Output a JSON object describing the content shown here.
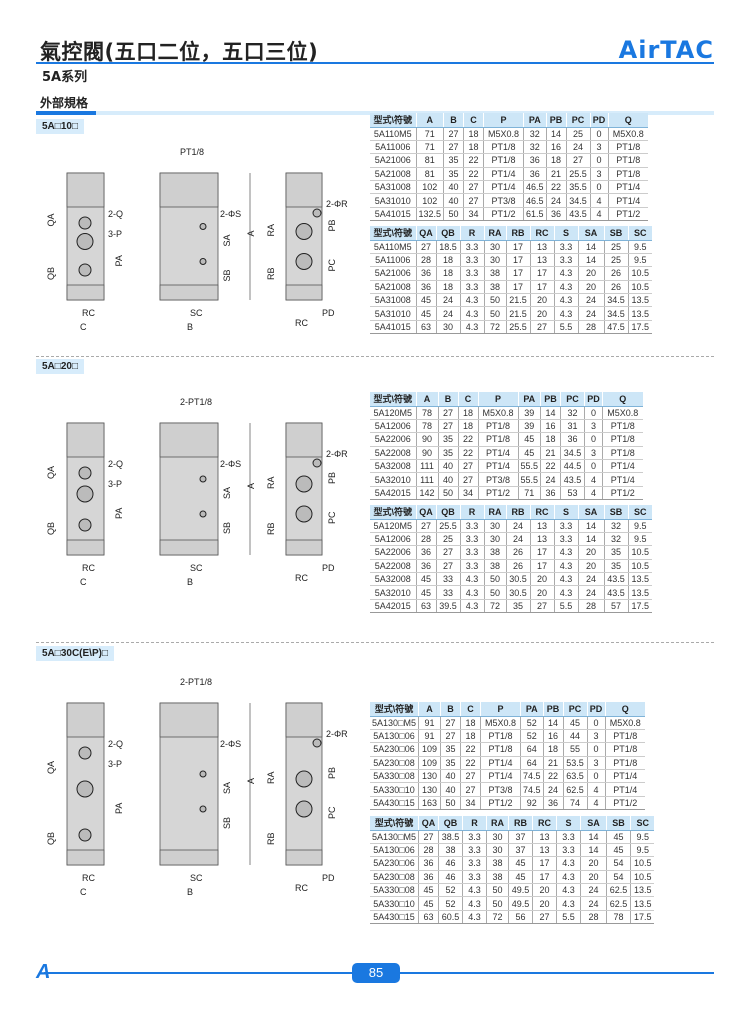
{
  "header": {
    "title": "氣控閥(五口二位，五口三位)",
    "logo": "AirTAC",
    "series": "5A系列",
    "spec_heading": "外部規格"
  },
  "footer": {
    "logo": "A",
    "page_number": "85"
  },
  "brand_color": "#1a78e0",
  "sections": [
    {
      "label": "5A□10□",
      "drawing_labels": {
        "port_top": "PT1/8",
        "q": "2-Q",
        "p": "3-P",
        "s": "2-ΦS",
        "r": "2-ΦR",
        "qa": "QA",
        "qb": "QB",
        "pa": "PA",
        "rc": "RC",
        "c": "C",
        "sa": "SA",
        "sb": "SB",
        "a": "A",
        "sc": "SC",
        "b": "B",
        "ra": "RA",
        "rb": "RB",
        "pb": "PB",
        "pc": "PC",
        "pd": "PD",
        "rc2": "RC"
      },
      "table1": {
        "headers": [
          "型式\\符號",
          "A",
          "B",
          "C",
          "P",
          "PA",
          "PB",
          "PC",
          "PD",
          "Q"
        ],
        "rows": [
          [
            "5A110M5",
            "71",
            "27",
            "18",
            "M5X0.8",
            "32",
            "14",
            "25",
            "0",
            "M5X0.8"
          ],
          [
            "5A11006",
            "71",
            "27",
            "18",
            "PT1/8",
            "32",
            "16",
            "24",
            "3",
            "PT1/8"
          ],
          [
            "5A21006",
            "81",
            "35",
            "22",
            "PT1/8",
            "36",
            "18",
            "27",
            "0",
            "PT1/8"
          ],
          [
            "5A21008",
            "81",
            "35",
            "22",
            "PT1/4",
            "36",
            "21",
            "25.5",
            "3",
            "PT1/8"
          ],
          [
            "5A31008",
            "102",
            "40",
            "27",
            "PT1/4",
            "46.5",
            "22",
            "35.5",
            "0",
            "PT1/4"
          ],
          [
            "5A31010",
            "102",
            "40",
            "27",
            "PT3/8",
            "46.5",
            "24",
            "34.5",
            "4",
            "PT1/4"
          ],
          [
            "5A41015",
            "132.5",
            "50",
            "34",
            "PT1/2",
            "61.5",
            "36",
            "43.5",
            "4",
            "PT1/2"
          ]
        ]
      },
      "table2": {
        "headers": [
          "型式\\符號",
          "QA",
          "QB",
          "R",
          "RA",
          "RB",
          "RC",
          "S",
          "SA",
          "SB",
          "SC"
        ],
        "rows": [
          [
            "5A110M5",
            "27",
            "18.5",
            "3.3",
            "30",
            "17",
            "13",
            "3.3",
            "14",
            "25",
            "9.5"
          ],
          [
            "5A11006",
            "28",
            "18",
            "3.3",
            "30",
            "17",
            "13",
            "3.3",
            "14",
            "25",
            "9.5"
          ],
          [
            "5A21006",
            "36",
            "18",
            "3.3",
            "38",
            "17",
            "17",
            "4.3",
            "20",
            "26",
            "10.5"
          ],
          [
            "5A21008",
            "36",
            "18",
            "3.3",
            "38",
            "17",
            "17",
            "4.3",
            "20",
            "26",
            "10.5"
          ],
          [
            "5A31008",
            "45",
            "24",
            "4.3",
            "50",
            "21.5",
            "20",
            "4.3",
            "24",
            "34.5",
            "13.5"
          ],
          [
            "5A31010",
            "45",
            "24",
            "4.3",
            "50",
            "21.5",
            "20",
            "4.3",
            "24",
            "34.5",
            "13.5"
          ],
          [
            "5A41015",
            "63",
            "30",
            "4.3",
            "72",
            "25.5",
            "27",
            "5.5",
            "28",
            "47.5",
            "17.5"
          ]
        ]
      }
    },
    {
      "label": "5A□20□",
      "drawing_labels": {
        "port_top": "2-PT1/8",
        "q": "2-Q",
        "p": "3-P",
        "s": "2-ΦS",
        "r": "2-ΦR",
        "qa": "QA",
        "qb": "QB",
        "pa": "PA",
        "rc": "RC",
        "c": "C",
        "sa": "SA",
        "sb": "SB",
        "a": "A",
        "sc": "SC",
        "b": "B",
        "ra": "RA",
        "rb": "RB",
        "pb": "PB",
        "pc": "PC",
        "pd": "PD",
        "rc2": "RC"
      },
      "table1": {
        "headers": [
          "型式\\符號",
          "A",
          "B",
          "C",
          "P",
          "PA",
          "PB",
          "PC",
          "PD",
          "Q"
        ],
        "rows": [
          [
            "5A120M5",
            "78",
            "27",
            "18",
            "M5X0.8",
            "39",
            "14",
            "32",
            "0",
            "M5X0.8"
          ],
          [
            "5A12006",
            "78",
            "27",
            "18",
            "PT1/8",
            "39",
            "16",
            "31",
            "3",
            "PT1/8"
          ],
          [
            "5A22006",
            "90",
            "35",
            "22",
            "PT1/8",
            "45",
            "18",
            "36",
            "0",
            "PT1/8"
          ],
          [
            "5A22008",
            "90",
            "35",
            "22",
            "PT1/4",
            "45",
            "21",
            "34.5",
            "3",
            "PT1/8"
          ],
          [
            "5A32008",
            "111",
            "40",
            "27",
            "PT1/4",
            "55.5",
            "22",
            "44.5",
            "0",
            "PT1/4"
          ],
          [
            "5A32010",
            "111",
            "40",
            "27",
            "PT3/8",
            "55.5",
            "24",
            "43.5",
            "4",
            "PT1/4"
          ],
          [
            "5A42015",
            "142",
            "50",
            "34",
            "PT1/2",
            "71",
            "36",
            "53",
            "4",
            "PT1/2"
          ]
        ]
      },
      "table2": {
        "headers": [
          "型式\\符號",
          "QA",
          "QB",
          "R",
          "RA",
          "RB",
          "RC",
          "S",
          "SA",
          "SB",
          "SC"
        ],
        "rows": [
          [
            "5A120M5",
            "27",
            "25.5",
            "3.3",
            "30",
            "24",
            "13",
            "3.3",
            "14",
            "32",
            "9.5"
          ],
          [
            "5A12006",
            "28",
            "25",
            "3.3",
            "30",
            "24",
            "13",
            "3.3",
            "14",
            "32",
            "9.5"
          ],
          [
            "5A22006",
            "36",
            "27",
            "3.3",
            "38",
            "26",
            "17",
            "4.3",
            "20",
            "35",
            "10.5"
          ],
          [
            "5A22008",
            "36",
            "27",
            "3.3",
            "38",
            "26",
            "17",
            "4.3",
            "20",
            "35",
            "10.5"
          ],
          [
            "5A32008",
            "45",
            "33",
            "4.3",
            "50",
            "30.5",
            "20",
            "4.3",
            "24",
            "43.5",
            "13.5"
          ],
          [
            "5A32010",
            "45",
            "33",
            "4.3",
            "50",
            "30.5",
            "20",
            "4.3",
            "24",
            "43.5",
            "13.5"
          ],
          [
            "5A42015",
            "63",
            "39.5",
            "4.3",
            "72",
            "35",
            "27",
            "5.5",
            "28",
            "57",
            "17.5"
          ]
        ]
      }
    },
    {
      "label": "5A□30C(E\\P)□",
      "drawing_labels": {
        "port_top": "2-PT1/8",
        "q": "2-Q",
        "p": "3-P",
        "s": "2-ΦS",
        "r": "2-ΦR",
        "qa": "QA",
        "qb": "QB",
        "pa": "PA",
        "rc": "RC",
        "c": "C",
        "sa": "SA",
        "sb": "SB",
        "a": "A",
        "sc": "SC",
        "b": "B",
        "ra": "RA",
        "rb": "RB",
        "pb": "PB",
        "pc": "PC",
        "pd": "PD",
        "rc2": "RC"
      },
      "table1": {
        "headers": [
          "型式\\符號",
          "A",
          "B",
          "C",
          "P",
          "PA",
          "PB",
          "PC",
          "PD",
          "Q"
        ],
        "rows": [
          [
            "5A130□M5",
            "91",
            "27",
            "18",
            "M5X0.8",
            "52",
            "14",
            "45",
            "0",
            "M5X0.8"
          ],
          [
            "5A130□06",
            "91",
            "27",
            "18",
            "PT1/8",
            "52",
            "16",
            "44",
            "3",
            "PT1/8"
          ],
          [
            "5A230□06",
            "109",
            "35",
            "22",
            "PT1/8",
            "64",
            "18",
            "55",
            "0",
            "PT1/8"
          ],
          [
            "5A230□08",
            "109",
            "35",
            "22",
            "PT1/4",
            "64",
            "21",
            "53.5",
            "3",
            "PT1/8"
          ],
          [
            "5A330□08",
            "130",
            "40",
            "27",
            "PT1/4",
            "74.5",
            "22",
            "63.5",
            "0",
            "PT1/4"
          ],
          [
            "5A330□10",
            "130",
            "40",
            "27",
            "PT3/8",
            "74.5",
            "24",
            "62.5",
            "4",
            "PT1/4"
          ],
          [
            "5A430□15",
            "163",
            "50",
            "34",
            "PT1/2",
            "92",
            "36",
            "74",
            "4",
            "PT1/2"
          ]
        ]
      },
      "table2": {
        "headers": [
          "型式\\符號",
          "QA",
          "QB",
          "R",
          "RA",
          "RB",
          "RC",
          "S",
          "SA",
          "SB",
          "SC"
        ],
        "rows": [
          [
            "5A130□M5",
            "27",
            "38.5",
            "3.3",
            "30",
            "37",
            "13",
            "3.3",
            "14",
            "45",
            "9.5"
          ],
          [
            "5A130□06",
            "28",
            "38",
            "3.3",
            "30",
            "37",
            "13",
            "3.3",
            "14",
            "45",
            "9.5"
          ],
          [
            "5A230□06",
            "36",
            "46",
            "3.3",
            "38",
            "45",
            "17",
            "4.3",
            "20",
            "54",
            "10.5"
          ],
          [
            "5A230□08",
            "36",
            "46",
            "3.3",
            "38",
            "45",
            "17",
            "4.3",
            "20",
            "54",
            "10.5"
          ],
          [
            "5A330□08",
            "45",
            "52",
            "4.3",
            "50",
            "49.5",
            "20",
            "4.3",
            "24",
            "62.5",
            "13.5"
          ],
          [
            "5A330□10",
            "45",
            "52",
            "4.3",
            "50",
            "49.5",
            "20",
            "4.3",
            "24",
            "62.5",
            "13.5"
          ],
          [
            "5A430□15",
            "63",
            "60.5",
            "4.3",
            "72",
            "56",
            "27",
            "5.5",
            "28",
            "78",
            "17.5"
          ]
        ]
      }
    }
  ]
}
